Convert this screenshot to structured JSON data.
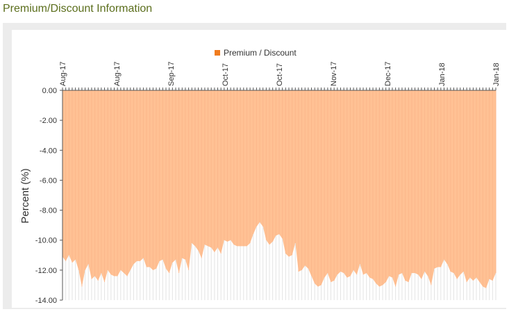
{
  "page": {
    "heading": "Premium/Discount Information"
  },
  "colors": {
    "fill": "#ffc194",
    "legend": "#f07c1e",
    "stroke": "#fbb78b"
  },
  "chart_data": {
    "type": "area",
    "title": "",
    "xlabel": "",
    "ylabel": "Percent (%)",
    "legend_position": "top",
    "grid": false,
    "series": [
      {
        "name": "Premium / Discount",
        "values": [
          -11.1,
          -11.4,
          -11.0,
          -11.5,
          -11.3,
          -12.0,
          -13.1,
          -12.0,
          -11.6,
          -12.6,
          -12.4,
          -12.7,
          -12.2,
          -12.8,
          -12.0,
          -12.3,
          -12.4,
          -12.4,
          -12.0,
          -12.2,
          -12.4,
          -12.0,
          -11.6,
          -11.4,
          -11.4,
          -11.2,
          -11.8,
          -11.8,
          -12.0,
          -11.9,
          -11.4,
          -11.3,
          -11.9,
          -12.2,
          -11.5,
          -11.3,
          -12.2,
          -11.2,
          -11.3,
          -12.0,
          -10.2,
          -10.4,
          -10.7,
          -11.2,
          -10.3,
          -10.4,
          -10.5,
          -10.8,
          -10.5,
          -10.9,
          -10.0,
          -10.1,
          -10.0,
          -10.3,
          -10.4,
          -10.4,
          -10.4,
          -10.4,
          -10.2,
          -9.6,
          -9.1,
          -8.8,
          -9.1,
          -10.0,
          -10.3,
          -10.1,
          -9.7,
          -9.6,
          -9.9,
          -10.9,
          -11.1,
          -11.0,
          -10.2,
          -12.1,
          -12.0,
          -11.7,
          -11.9,
          -12.4,
          -12.9,
          -13.1,
          -13.0,
          -12.5,
          -12.2,
          -12.8,
          -12.7,
          -12.3,
          -12.1,
          -12.2,
          -12.5,
          -12.4,
          -12.0,
          -12.3,
          -11.6,
          -12.3,
          -12.2,
          -12.5,
          -12.6,
          -12.9,
          -13.1,
          -13.0,
          -12.8,
          -12.4,
          -12.5,
          -13.1,
          -12.3,
          -12.2,
          -12.7,
          -12.8,
          -12.2,
          -12.2,
          -12.3,
          -12.6,
          -12.1,
          -12.4,
          -13.0,
          -11.9,
          -11.8,
          -11.8,
          -11.3,
          -11.6,
          -12.1,
          -12.2,
          -12.6,
          -12.3,
          -12.1,
          -12.8,
          -12.5,
          -12.7,
          -12.5,
          -12.8,
          -13.1,
          -13.2,
          -12.6,
          -12.7,
          -12.2
        ]
      }
    ],
    "x_tick_labels": [
      "Aug-17",
      "Aug-17",
      "Sep-17",
      "Oct-17",
      "Oct-17",
      "Nov-17",
      "Dec-17",
      "Jan-18",
      "Jan-18"
    ],
    "y_ticks": [
      "0.00",
      "-2.00",
      "-4.00",
      "-6.00",
      "-8.00",
      "-10.00",
      "-12.00",
      "-14.00"
    ],
    "ylim": [
      -14,
      0
    ]
  }
}
